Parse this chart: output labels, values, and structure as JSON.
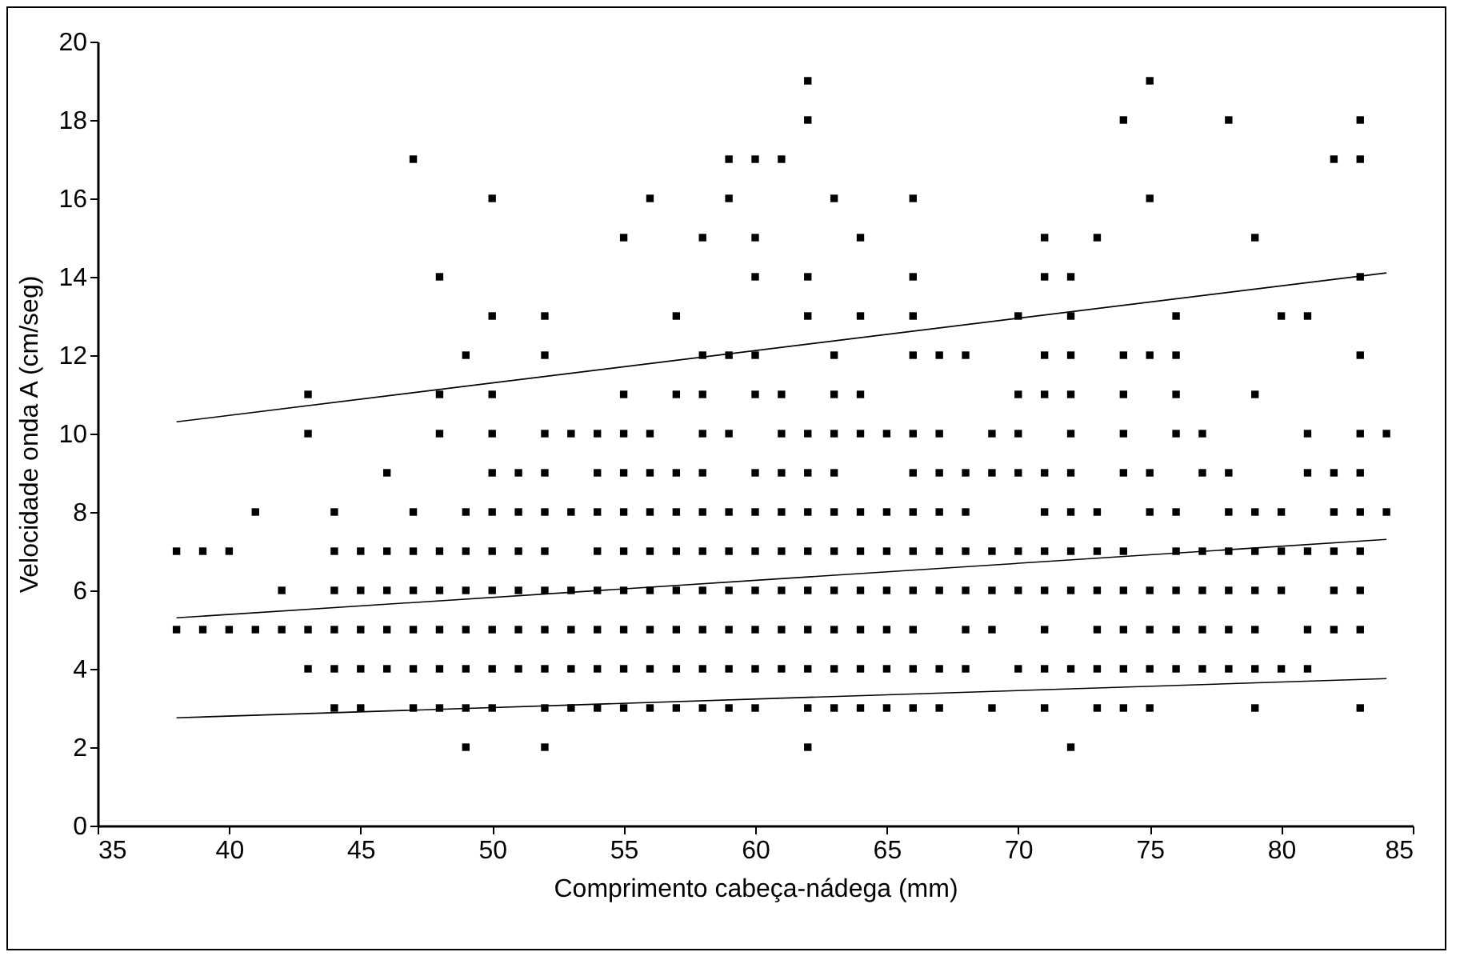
{
  "chart_data": {
    "type": "scatter",
    "xlabel": "Comprimento cabeça-nádega (mm)",
    "ylabel": "Velocidade onda A (cm/seg)",
    "xlim": [
      35,
      85
    ],
    "xticks": [
      35,
      40,
      45,
      50,
      55,
      60,
      65,
      70,
      75,
      80,
      85
    ],
    "ylim": [
      0,
      20
    ],
    "yticks": [
      0,
      2,
      4,
      6,
      8,
      10,
      12,
      14,
      16,
      18,
      20
    ],
    "grid": false,
    "series": [
      {
        "color": "#000000",
        "marker": "square",
        "x": [
          62,
          75,
          62,
          74,
          78,
          83,
          47,
          59,
          60,
          61,
          82,
          83,
          50,
          56,
          59,
          63,
          66,
          75,
          55,
          58,
          60,
          64,
          71,
          73,
          79,
          48,
          60,
          62,
          66,
          71,
          72,
          83,
          50,
          52,
          57,
          62,
          64,
          66,
          70,
          72,
          76,
          80,
          81,
          49,
          52,
          58,
          59,
          60,
          63,
          66,
          67,
          68,
          71,
          72,
          74,
          75,
          76,
          83,
          43,
          48,
          50,
          55,
          57,
          58,
          60,
          61,
          63,
          64,
          70,
          71,
          72,
          74,
          76,
          79,
          43,
          48,
          50,
          52,
          53,
          54,
          55,
          56,
          58,
          59,
          61,
          62,
          63,
          64,
          65,
          66,
          67,
          69,
          70,
          72,
          74,
          76,
          77,
          81,
          83,
          84,
          46,
          50,
          51,
          52,
          54,
          55,
          56,
          57,
          58,
          60,
          61,
          62,
          63,
          66,
          67,
          68,
          69,
          70,
          71,
          72,
          74,
          75,
          77,
          78,
          81,
          82,
          83,
          41,
          44,
          47,
          49,
          50,
          51,
          52,
          53,
          54,
          55,
          56,
          57,
          58,
          59,
          60,
          61,
          62,
          63,
          64,
          65,
          66,
          67,
          68,
          71,
          72,
          73,
          75,
          76,
          78,
          79,
          80,
          82,
          83,
          84,
          38,
          39,
          40,
          44,
          45,
          46,
          47,
          48,
          49,
          50,
          51,
          52,
          54,
          55,
          56,
          57,
          58,
          59,
          60,
          61,
          62,
          63,
          64,
          65,
          66,
          67,
          68,
          69,
          70,
          71,
          72,
          73,
          74,
          76,
          77,
          78,
          79,
          80,
          81,
          82,
          83,
          42,
          44,
          45,
          46,
          47,
          48,
          49,
          50,
          51,
          52,
          53,
          54,
          55,
          56,
          57,
          58,
          59,
          60,
          61,
          62,
          63,
          64,
          65,
          66,
          67,
          68,
          69,
          70,
          71,
          72,
          73,
          74,
          75,
          76,
          77,
          78,
          79,
          80,
          82,
          83,
          38,
          39,
          40,
          41,
          42,
          43,
          44,
          45,
          46,
          47,
          48,
          49,
          50,
          51,
          52,
          53,
          54,
          55,
          56,
          57,
          58,
          59,
          60,
          61,
          62,
          63,
          64,
          65,
          66,
          68,
          69,
          71,
          73,
          74,
          75,
          76,
          77,
          78,
          79,
          81,
          82,
          83,
          43,
          44,
          45,
          46,
          47,
          48,
          49,
          50,
          51,
          52,
          53,
          54,
          55,
          56,
          57,
          58,
          59,
          60,
          61,
          62,
          63,
          64,
          65,
          66,
          67,
          68,
          70,
          71,
          72,
          73,
          74,
          75,
          76,
          77,
          78,
          79,
          80,
          81,
          44,
          45,
          47,
          48,
          49,
          50,
          52,
          53,
          54,
          55,
          56,
          57,
          58,
          59,
          60,
          62,
          63,
          64,
          65,
          66,
          67,
          69,
          71,
          73,
          74,
          75,
          79,
          83,
          49,
          52,
          62,
          72
        ],
        "values": [
          19,
          19,
          18,
          18,
          18,
          18,
          17,
          17,
          17,
          17,
          17,
          17,
          16,
          16,
          16,
          16,
          16,
          16,
          15,
          15,
          15,
          15,
          15,
          15,
          15,
          14,
          14,
          14,
          14,
          14,
          14,
          14,
          13,
          13,
          13,
          13,
          13,
          13,
          13,
          13,
          13,
          13,
          13,
          12,
          12,
          12,
          12,
          12,
          12,
          12,
          12,
          12,
          12,
          12,
          12,
          12,
          12,
          12,
          11,
          11,
          11,
          11,
          11,
          11,
          11,
          11,
          11,
          11,
          11,
          11,
          11,
          11,
          11,
          11,
          10,
          10,
          10,
          10,
          10,
          10,
          10,
          10,
          10,
          10,
          10,
          10,
          10,
          10,
          10,
          10,
          10,
          10,
          10,
          10,
          10,
          10,
          10,
          10,
          10,
          10,
          9,
          9,
          9,
          9,
          9,
          9,
          9,
          9,
          9,
          9,
          9,
          9,
          9,
          9,
          9,
          9,
          9,
          9,
          9,
          9,
          9,
          9,
          9,
          9,
          9,
          9,
          9,
          8,
          8,
          8,
          8,
          8,
          8,
          8,
          8,
          8,
          8,
          8,
          8,
          8,
          8,
          8,
          8,
          8,
          8,
          8,
          8,
          8,
          8,
          8,
          8,
          8,
          8,
          8,
          8,
          8,
          8,
          8,
          8,
          8,
          8,
          7,
          7,
          7,
          7,
          7,
          7,
          7,
          7,
          7,
          7,
          7,
          7,
          7,
          7,
          7,
          7,
          7,
          7,
          7,
          7,
          7,
          7,
          7,
          7,
          7,
          7,
          7,
          7,
          7,
          7,
          7,
          7,
          7,
          7,
          7,
          7,
          7,
          7,
          7,
          7,
          7,
          6,
          6,
          6,
          6,
          6,
          6,
          6,
          6,
          6,
          6,
          6,
          6,
          6,
          6,
          6,
          6,
          6,
          6,
          6,
          6,
          6,
          6,
          6,
          6,
          6,
          6,
          6,
          6,
          6,
          6,
          6,
          6,
          6,
          6,
          6,
          6,
          6,
          6,
          6,
          6,
          5,
          5,
          5,
          5,
          5,
          5,
          5,
          5,
          5,
          5,
          5,
          5,
          5,
          5,
          5,
          5,
          5,
          5,
          5,
          5,
          5,
          5,
          5,
          5,
          5,
          5,
          5,
          5,
          5,
          5,
          5,
          5,
          5,
          5,
          5,
          5,
          5,
          5,
          5,
          5,
          5,
          5,
          4,
          4,
          4,
          4,
          4,
          4,
          4,
          4,
          4,
          4,
          4,
          4,
          4,
          4,
          4,
          4,
          4,
          4,
          4,
          4,
          4,
          4,
          4,
          4,
          4,
          4,
          4,
          4,
          4,
          4,
          4,
          4,
          4,
          4,
          4,
          4,
          4,
          4,
          3,
          3,
          3,
          3,
          3,
          3,
          3,
          3,
          3,
          3,
          3,
          3,
          3,
          3,
          3,
          3,
          3,
          3,
          3,
          3,
          3,
          3,
          3,
          3,
          3,
          3,
          3,
          3,
          2,
          2,
          2,
          2
        ]
      },
      {
        "type": "line",
        "color": "#000000",
        "x": [
          38,
          84
        ],
        "values": [
          10.3,
          14.1
        ]
      },
      {
        "type": "line",
        "color": "#000000",
        "x": [
          38,
          84
        ],
        "values": [
          5.3,
          7.3
        ]
      },
      {
        "type": "line",
        "color": "#000000",
        "x": [
          38,
          84
        ],
        "values": [
          2.75,
          3.75
        ]
      }
    ]
  }
}
